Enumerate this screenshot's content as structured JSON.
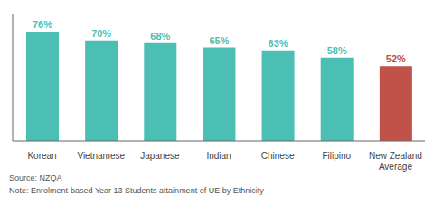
{
  "chart_data": {
    "type": "bar",
    "categories": [
      "Korean",
      "Vietnamese",
      "Japanese",
      "Indian",
      "Chinese",
      "Filipino",
      "New Zealand\nAverage"
    ],
    "values": [
      76,
      70,
      68,
      65,
      63,
      58,
      52
    ],
    "value_labels": [
      "76%",
      "70%",
      "68%",
      "65%",
      "63%",
      "58%",
      "52%"
    ],
    "colors": [
      "#4bbfb4",
      "#4bbfb4",
      "#4bbfb4",
      "#4bbfb4",
      "#4bbfb4",
      "#4bbfb4",
      "#c0524a"
    ],
    "ylim": [
      0,
      88
    ],
    "yticks": [],
    "grid": false,
    "data_labels": true,
    "tick_labels": "x",
    "annotations": [
      "Source: NZQA",
      "Note: Enrolment-based Year 13 Students attainment of UE by Ethnicity"
    ]
  }
}
